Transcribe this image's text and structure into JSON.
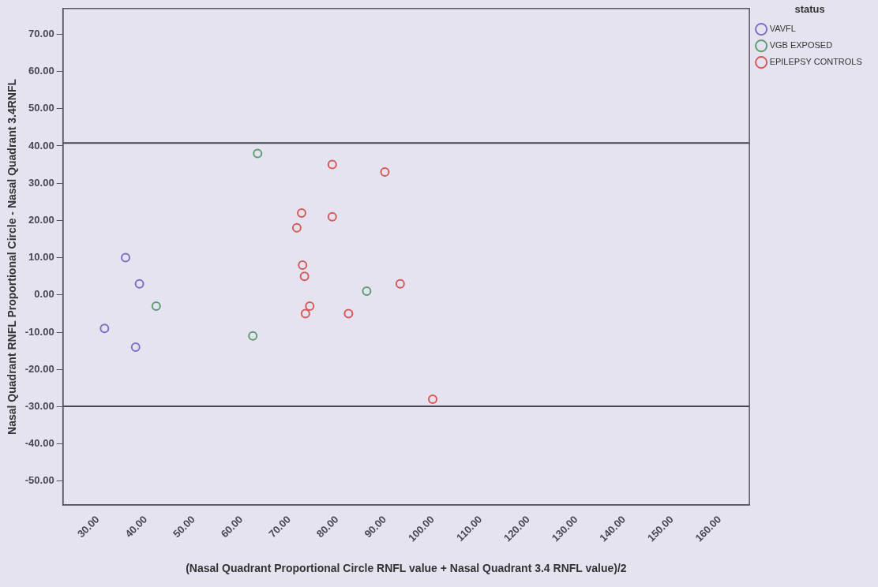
{
  "chart_data": {
    "type": "scatter",
    "xlabel": "(Nasal Quadrant Proportional Circle RNFL value + Nasal Quadrant 3.4 RNFL value)/2",
    "ylabel": "Nasal Quadrant RNFL Proportional Circle - Nasal Quadrant 3.4RNFL",
    "legend_title": "status",
    "legend": "top right",
    "marker": "circle",
    "grid": false,
    "xlim": [
      22.7,
      166.2
    ],
    "ylim": [
      -56.4,
      76.9
    ],
    "xticks": [
      {
        "value": 30,
        "label": "30.00"
      },
      {
        "value": 40,
        "label": "40.00"
      },
      {
        "value": 50,
        "label": "50.00"
      },
      {
        "value": 60,
        "label": "60.00"
      },
      {
        "value": 70,
        "label": "70.00"
      },
      {
        "value": 80,
        "label": "80.00"
      },
      {
        "value": 90,
        "label": "90.00"
      },
      {
        "value": 100,
        "label": "100.00"
      },
      {
        "value": 110,
        "label": "110.00"
      },
      {
        "value": 120,
        "label": "120.00"
      },
      {
        "value": 130,
        "label": "130.00"
      },
      {
        "value": 140,
        "label": "140.00"
      },
      {
        "value": 150,
        "label": "150.00"
      },
      {
        "value": 160,
        "label": "160.00"
      }
    ],
    "yticks": [
      {
        "value": -50,
        "label": "-50.00"
      },
      {
        "value": -40,
        "label": "-40.00"
      },
      {
        "value": -30,
        "label": "-30.00"
      },
      {
        "value": -20,
        "label": "-20.00"
      },
      {
        "value": -10,
        "label": "-10.00"
      },
      {
        "value": 0,
        "label": "0.00"
      },
      {
        "value": 10,
        "label": "10.00"
      },
      {
        "value": 20,
        "label": "20.00"
      },
      {
        "value": 30,
        "label": "30.00"
      },
      {
        "value": 40,
        "label": "40.00"
      },
      {
        "value": 50,
        "label": "50.00"
      },
      {
        "value": 60,
        "label": "60.00"
      },
      {
        "value": 70,
        "label": "70.00"
      }
    ],
    "ref_lines": [
      {
        "axis": "y",
        "value": 40.8,
        "color": "#4a4550"
      },
      {
        "axis": "y",
        "value": -29.9,
        "color": "#4a4550"
      }
    ],
    "series": [
      {
        "name": "VAVFL",
        "color": "#7a70c4",
        "x": [
          31.4,
          35.8,
          38.7,
          37.9
        ],
        "values": [
          -9,
          10,
          3,
          -14
        ]
      },
      {
        "name": "VGB EXPOSED",
        "color": "#5f9c74",
        "x": [
          63.4,
          42.2,
          62.4,
          86.2
        ],
        "values": [
          38,
          -3,
          -11,
          1
        ]
      },
      {
        "name": "EPILEPSY CONTROLS",
        "color": "#d65a5a",
        "x": [
          79,
          90,
          72.6,
          79,
          71.6,
          72.8,
          73.2,
          74.3,
          73.4,
          82.4,
          93.2,
          100
        ],
        "values": [
          35,
          33,
          22,
          21,
          18,
          8,
          5,
          -3,
          -5,
          -5,
          3,
          -28
        ]
      }
    ]
  }
}
